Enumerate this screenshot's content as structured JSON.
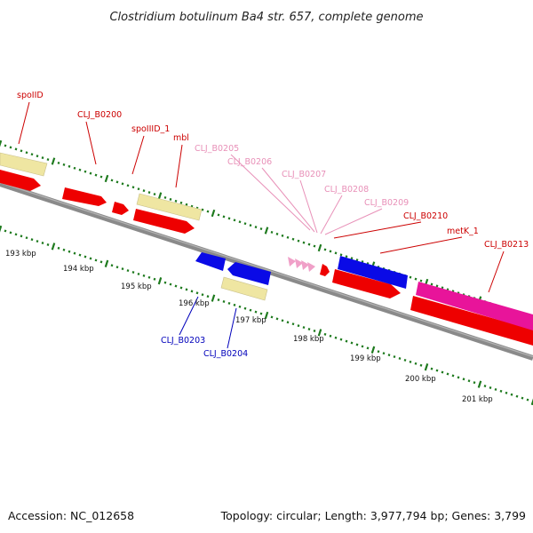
{
  "title": "Clostridium botulinum Ba4 str. 657, complete genome",
  "footer": {
    "accession": "Accession: NC_012658",
    "topology": "Topology: circular; Length: 3,977,794 bp; Genes: 3,799"
  },
  "colors": {
    "backbone": "#8a8a8a",
    "tick": "#1e7a1e",
    "gene_red": "#ee0000",
    "gene_pink_light": "#f0a0c8",
    "gene_magenta": "#e8149a",
    "gene_blue": "#0a0ae6",
    "gene_yellow": "#efe6a2",
    "label_red": "#cc0000",
    "label_pink": "#e890b8",
    "label_blue": "#0000bb"
  },
  "kbp_labels": [
    "193 kbp",
    "194 kbp",
    "195 kbp",
    "196 kbp",
    "197 kbp",
    "198 kbp",
    "199 kbp",
    "200 kbp",
    "201 kbp"
  ],
  "gene_labels": [
    {
      "text": "spoIID",
      "color": "label_red"
    },
    {
      "text": "CLJ_B0200",
      "color": "label_red"
    },
    {
      "text": "spoIIID_1",
      "color": "label_red"
    },
    {
      "text": "mbl",
      "color": "label_red"
    },
    {
      "text": "CLJ_B0205",
      "color": "label_pink"
    },
    {
      "text": "CLJ_B0206",
      "color": "label_pink"
    },
    {
      "text": "CLJ_B0207",
      "color": "label_pink"
    },
    {
      "text": "CLJ_B0208",
      "color": "label_pink"
    },
    {
      "text": "CLJ_B0209",
      "color": "label_pink"
    },
    {
      "text": "CLJ_B0210",
      "color": "label_red"
    },
    {
      "text": "metK_1",
      "color": "label_red"
    },
    {
      "text": "CLJ_B0213",
      "color": "label_red"
    },
    {
      "text": "CLJ_B0203",
      "color": "label_blue"
    },
    {
      "text": "CLJ_B0204",
      "color": "label_blue"
    }
  ]
}
